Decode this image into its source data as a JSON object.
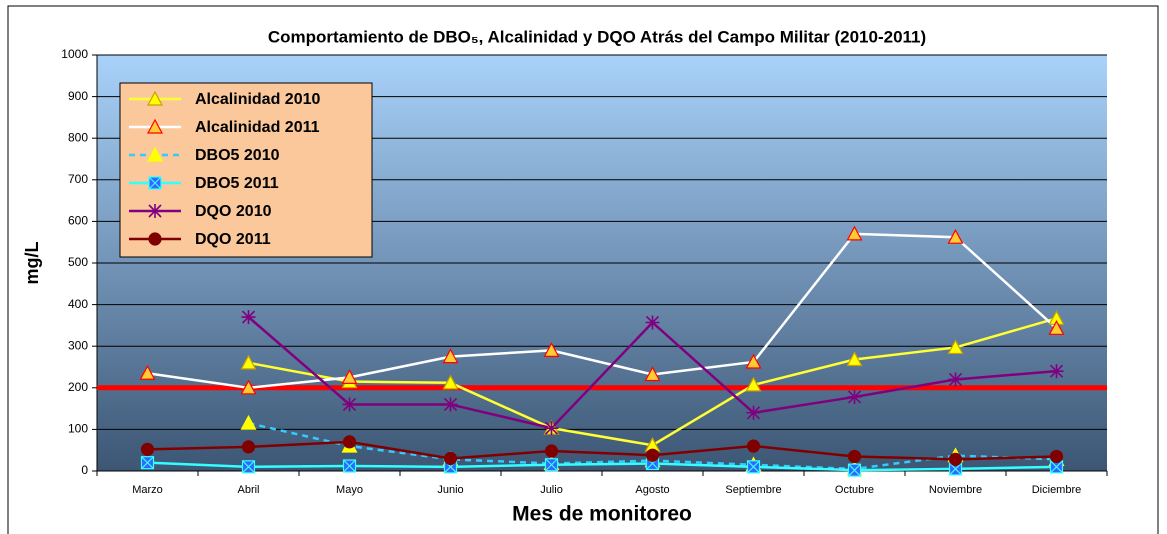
{
  "chart_data": {
    "type": "line",
    "title": "Comportamiento de DBO₅, Alcalinidad y DQO Atrás del Campo Militar (2010-2011)",
    "x_label": "Mes de monitoreo",
    "y_label": "mg/L",
    "categories": [
      "Marzo",
      "Abril",
      "Mayo",
      "Junio",
      "Julio",
      "Agosto",
      "Septiembre",
      "Octubre",
      "Noviembre",
      "Diciembre"
    ],
    "ylim": [
      0,
      1000
    ],
    "yticks": [
      0,
      100,
      200,
      300,
      400,
      500,
      600,
      700,
      800,
      900,
      1000
    ],
    "grid": true,
    "legend": "upper left",
    "reference_line": {
      "value": 200,
      "color": "#ff0000"
    },
    "series": [
      {
        "name": "Alcalinidad 2010",
        "color": "#ffff33",
        "dash": false,
        "marker": "triangle",
        "marker_color": "#ffff00",
        "marker_edge": "#c8a000",
        "values": [
          null,
          260,
          215,
          212,
          103,
          62,
          207,
          268,
          297,
          367
        ]
      },
      {
        "name": "Alcalinidad 2011",
        "color": "#ffffff",
        "dash": false,
        "marker": "triangle",
        "marker_color": "#ffcc33",
        "marker_edge": "#ff0000",
        "values": [
          235,
          200,
          225,
          275,
          290,
          232,
          262,
          570,
          562,
          343
        ]
      },
      {
        "name": "DBO5 2010",
        "color": "#33ccff",
        "dash": true,
        "marker": "triangle",
        "marker_color": "#ffff00",
        "marker_edge": "#ffff00",
        "values": [
          null,
          115,
          60,
          28,
          18,
          25,
          15,
          5,
          37,
          28
        ]
      },
      {
        "name": "DBO5 2011",
        "color": "#33ffff",
        "dash": false,
        "marker": "xsquare",
        "marker_color": "#3366ff",
        "marker_edge": "#33ffff",
        "values": [
          20,
          10,
          12,
          10,
          15,
          18,
          10,
          2,
          5,
          10
        ]
      },
      {
        "name": "DQO 2010",
        "color": "#800080",
        "dash": false,
        "marker": "asterisk",
        "marker_color": "#800080",
        "marker_edge": "#800080",
        "values": [
          null,
          370,
          160,
          160,
          103,
          357,
          140,
          178,
          220,
          240
        ]
      },
      {
        "name": "DQO 2011",
        "color": "#800000",
        "dash": false,
        "marker": "circle",
        "marker_color": "#800000",
        "marker_edge": "#800000",
        "values": [
          52,
          58,
          70,
          30,
          48,
          38,
          60,
          35,
          28,
          35
        ]
      }
    ]
  }
}
